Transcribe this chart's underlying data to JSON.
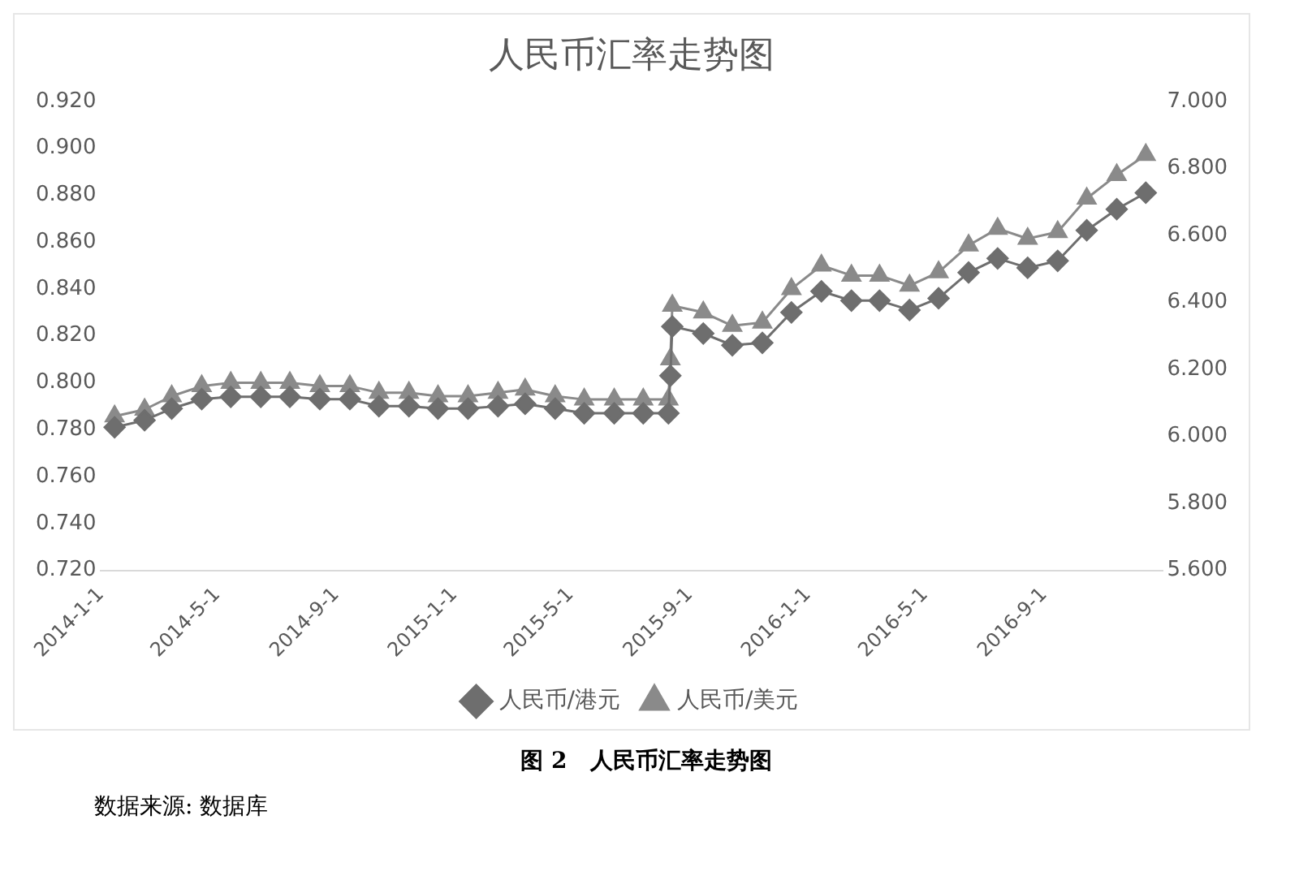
{
  "chart_data": {
    "type": "line",
    "title": "人民币汇率走势图",
    "annotations": [
      "图 2　人民币汇率走势图",
      "数据来源: 数据库"
    ],
    "x": [
      "2014-01-15",
      "2014-02-15",
      "2014-03-15",
      "2014-04-15",
      "2014-05-15",
      "2014-06-15",
      "2014-07-15",
      "2014-08-15",
      "2014-09-15",
      "2014-10-15",
      "2014-11-15",
      "2014-12-15",
      "2015-01-15",
      "2015-02-15",
      "2015-03-15",
      "2015-04-15",
      "2015-05-15",
      "2015-06-15",
      "2015-07-15",
      "2015-08-10",
      "2015-08-12",
      "2015-08-14",
      "2015-09-15",
      "2015-10-15",
      "2015-11-15",
      "2015-12-15",
      "2016-01-15",
      "2016-02-15",
      "2016-03-15",
      "2016-04-15",
      "2016-05-15",
      "2016-06-15",
      "2016-07-15",
      "2016-08-15",
      "2016-09-15",
      "2016-10-15",
      "2016-11-15",
      "2016-12-15"
    ],
    "series": [
      {
        "name": "人民币/港元",
        "color": "#6e6e6e",
        "marker": "diamond",
        "axis": "y",
        "values": [
          0.781,
          0.784,
          0.789,
          0.793,
          0.794,
          0.794,
          0.794,
          0.793,
          0.793,
          0.79,
          0.79,
          0.789,
          0.789,
          0.79,
          0.791,
          0.789,
          0.787,
          0.787,
          0.787,
          0.787,
          0.803,
          0.824,
          0.821,
          0.816,
          0.817,
          0.83,
          0.839,
          0.835,
          0.835,
          0.831,
          0.836,
          0.847,
          0.853,
          0.849,
          0.852,
          0.865,
          0.874,
          0.881
        ]
      },
      {
        "name": "人民币/美元",
        "color": "#8a8a8a",
        "marker": "triangle",
        "axis": "y2",
        "values": [
          6.06,
          6.08,
          6.12,
          6.15,
          6.16,
          6.16,
          6.16,
          6.15,
          6.15,
          6.13,
          6.13,
          6.12,
          6.12,
          6.13,
          6.14,
          6.12,
          6.11,
          6.11,
          6.11,
          6.11,
          6.23,
          6.39,
          6.37,
          6.33,
          6.34,
          6.44,
          6.51,
          6.48,
          6.48,
          6.45,
          6.49,
          6.57,
          6.62,
          6.59,
          6.61,
          6.71,
          6.78,
          6.84
        ]
      }
    ],
    "xlim": [
      "2014-01-01",
      "2017-01-01"
    ],
    "xticks": [
      {
        "value": "2014-01-01",
        "label": "2014-1-1"
      },
      {
        "value": "2014-05-01",
        "label": "2014-5-1"
      },
      {
        "value": "2014-09-01",
        "label": "2014-9-1"
      },
      {
        "value": "2015-01-01",
        "label": "2015-1-1"
      },
      {
        "value": "2015-05-01",
        "label": "2015-5-1"
      },
      {
        "value": "2015-09-01",
        "label": "2015-9-1"
      },
      {
        "value": "2016-01-01",
        "label": "2016-1-1"
      },
      {
        "value": "2016-05-01",
        "label": "2016-5-1"
      },
      {
        "value": "2016-09-01",
        "label": "2016-9-1"
      }
    ],
    "ylim": [
      0.72,
      0.92
    ],
    "yticks": [
      {
        "value": 0.72,
        "label": "0.720"
      },
      {
        "value": 0.74,
        "label": "0.740"
      },
      {
        "value": 0.76,
        "label": "0.760"
      },
      {
        "value": 0.78,
        "label": "0.780"
      },
      {
        "value": 0.8,
        "label": "0.800"
      },
      {
        "value": 0.82,
        "label": "0.820"
      },
      {
        "value": 0.84,
        "label": "0.840"
      },
      {
        "value": 0.86,
        "label": "0.860"
      },
      {
        "value": 0.88,
        "label": "0.880"
      },
      {
        "value": 0.9,
        "label": "0.900"
      },
      {
        "value": 0.92,
        "label": "0.920"
      }
    ],
    "y2lim": [
      5.6,
      7.0
    ],
    "y2ticks": [
      {
        "value": 5.6,
        "label": "5.600"
      },
      {
        "value": 5.8,
        "label": "5.800"
      },
      {
        "value": 6.0,
        "label": "6.000"
      },
      {
        "value": 6.2,
        "label": "6.200"
      },
      {
        "value": 6.4,
        "label": "6.400"
      },
      {
        "value": 6.6,
        "label": "6.600"
      },
      {
        "value": 6.8,
        "label": "6.800"
      },
      {
        "value": 7.0,
        "label": "7.000"
      }
    ],
    "grid": false,
    "legend": "bottom"
  }
}
